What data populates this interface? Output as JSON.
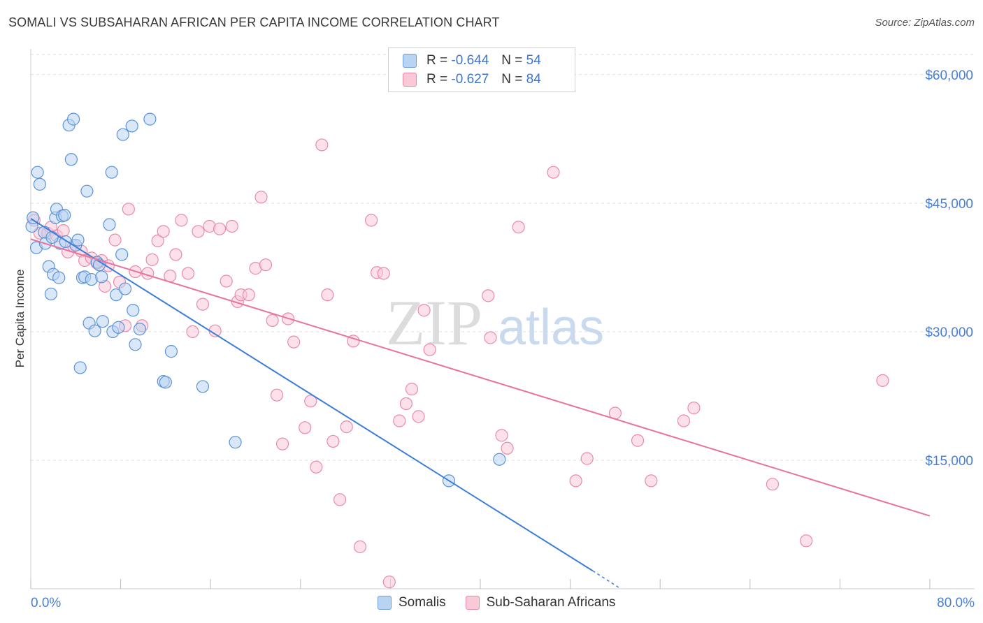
{
  "title": "SOMALI VS SUBSAHARAN AFRICAN PER CAPITA INCOME CORRELATION CHART",
  "source": "Source: ZipAtlas.com",
  "watermark": {
    "zip": "ZIP",
    "atlas": "atlas"
  },
  "legend": {
    "rows": [
      {
        "r_label": "R =",
        "r_value": "-0.644",
        "n_label": "N =",
        "n_value": "54"
      },
      {
        "r_label": "R =",
        "r_value": "-0.627",
        "n_label": "N =",
        "n_value": "84"
      }
    ]
  },
  "bottom_legend": [
    "Somalis",
    "Sub-Saharan Africans"
  ],
  "colors": {
    "blue": "#3b7dd8",
    "blue_fill": "#b9d3f3",
    "pink": "#e8739b",
    "pink_fill": "#f9c9d8",
    "axis_label": "#4a7fd0",
    "grid": "#dddddd"
  },
  "chart_data": {
    "type": "scatter",
    "ylabel": "Per Capita Income",
    "xlabel": "",
    "xlim": [
      0,
      80
    ],
    "ylim": [
      0,
      63000
    ],
    "x_tick_labels": [
      "0.0%",
      "80.0%"
    ],
    "y_ticks": [
      15000,
      30000,
      45000,
      60000
    ],
    "y_tick_labels": [
      "$15,000",
      "$30,000",
      "$45,000",
      "$60,000"
    ],
    "grid": "horizontal dashed",
    "series": [
      {
        "name": "Somalis",
        "color": "#3b7dd8",
        "trend": {
          "x0": 0,
          "y0": 43200,
          "x1": 50,
          "y1": 2100,
          "dash_to_x": 52.5,
          "dash_to_y": 0
        },
        "points": [
          [
            0.1,
            42300
          ],
          [
            0.2,
            43300
          ],
          [
            0.5,
            39800
          ],
          [
            0.6,
            48600
          ],
          [
            0.8,
            47200
          ],
          [
            1.2,
            41600
          ],
          [
            1.3,
            40300
          ],
          [
            1.6,
            37600
          ],
          [
            1.8,
            34400
          ],
          [
            2.0,
            36700
          ],
          [
            2.2,
            43300
          ],
          [
            2.3,
            44300
          ],
          [
            2.5,
            36300
          ],
          [
            2.8,
            43500
          ],
          [
            3.0,
            43600
          ],
          [
            3.4,
            54100
          ],
          [
            3.6,
            50100
          ],
          [
            3.8,
            54800
          ],
          [
            4.0,
            40100
          ],
          [
            4.2,
            40700
          ],
          [
            4.4,
            25800
          ],
          [
            4.6,
            36300
          ],
          [
            4.8,
            36400
          ],
          [
            5.0,
            46400
          ],
          [
            5.2,
            31000
          ],
          [
            5.4,
            36100
          ],
          [
            5.7,
            30100
          ],
          [
            5.9,
            38100
          ],
          [
            6.1,
            37800
          ],
          [
            6.3,
            36400
          ],
          [
            6.4,
            31200
          ],
          [
            7.0,
            42500
          ],
          [
            7.2,
            48600
          ],
          [
            7.3,
            30000
          ],
          [
            7.6,
            34300
          ],
          [
            7.8,
            30500
          ],
          [
            8.1,
            39000
          ],
          [
            8.2,
            53000
          ],
          [
            8.4,
            35000
          ],
          [
            9.0,
            54000
          ],
          [
            9.1,
            32500
          ],
          [
            9.3,
            28500
          ],
          [
            9.7,
            30300
          ],
          [
            10.6,
            54800
          ],
          [
            11.8,
            24200
          ],
          [
            12.0,
            24100
          ],
          [
            12.5,
            27700
          ],
          [
            15.3,
            23600
          ],
          [
            18.2,
            17100
          ],
          [
            37.2,
            12600
          ],
          [
            41.7,
            15100
          ],
          [
            2.6,
            40300
          ],
          [
            1.9,
            41000
          ],
          [
            3.1,
            40500
          ]
        ]
      },
      {
        "name": "Sub-Saharan Africans",
        "color": "#e8739b",
        "trend": {
          "x0": 0,
          "y0": 40800,
          "x1": 80,
          "y1": 8500
        },
        "points": [
          [
            0.3,
            43000
          ],
          [
            0.8,
            41500
          ],
          [
            1.5,
            41500
          ],
          [
            1.8,
            42200
          ],
          [
            2.3,
            41200
          ],
          [
            2.9,
            41800
          ],
          [
            3.3,
            39300
          ],
          [
            3.8,
            40000
          ],
          [
            4.5,
            39400
          ],
          [
            4.8,
            38300
          ],
          [
            5.4,
            38600
          ],
          [
            5.9,
            38000
          ],
          [
            6.3,
            38300
          ],
          [
            6.6,
            35300
          ],
          [
            6.9,
            37700
          ],
          [
            7.5,
            40700
          ],
          [
            7.9,
            35800
          ],
          [
            8.4,
            30700
          ],
          [
            8.7,
            44300
          ],
          [
            9.3,
            37000
          ],
          [
            9.9,
            30700
          ],
          [
            10.4,
            36800
          ],
          [
            10.8,
            38400
          ],
          [
            11.3,
            40600
          ],
          [
            11.8,
            41700
          ],
          [
            12.4,
            36500
          ],
          [
            12.9,
            39000
          ],
          [
            13.4,
            43000
          ],
          [
            14.0,
            36800
          ],
          [
            14.4,
            30000
          ],
          [
            14.9,
            41700
          ],
          [
            15.3,
            33200
          ],
          [
            15.9,
            42300
          ],
          [
            16.4,
            30100
          ],
          [
            16.8,
            42000
          ],
          [
            17.4,
            35900
          ],
          [
            17.9,
            42300
          ],
          [
            18.4,
            33500
          ],
          [
            18.7,
            34300
          ],
          [
            19.4,
            34300
          ],
          [
            20.0,
            37400
          ],
          [
            20.5,
            45700
          ],
          [
            20.9,
            37800
          ],
          [
            21.5,
            31300
          ],
          [
            21.9,
            22600
          ],
          [
            22.4,
            16900
          ],
          [
            22.9,
            31500
          ],
          [
            23.4,
            28800
          ],
          [
            24.4,
            18800
          ],
          [
            24.9,
            21900
          ],
          [
            25.4,
            14200
          ],
          [
            25.9,
            51800
          ],
          [
            26.4,
            34300
          ],
          [
            26.9,
            17200
          ],
          [
            27.5,
            10400
          ],
          [
            28.1,
            18900
          ],
          [
            28.7,
            28900
          ],
          [
            29.3,
            4900
          ],
          [
            30.3,
            43000
          ],
          [
            30.8,
            36900
          ],
          [
            31.4,
            36800
          ],
          [
            31.9,
            800
          ],
          [
            32.8,
            19600
          ],
          [
            33.4,
            21600
          ],
          [
            33.9,
            23300
          ],
          [
            34.5,
            20100
          ],
          [
            35.0,
            32500
          ],
          [
            35.5,
            27900
          ],
          [
            40.7,
            34200
          ],
          [
            40.9,
            29300
          ],
          [
            41.9,
            17900
          ],
          [
            42.4,
            16400
          ],
          [
            43.4,
            42200
          ],
          [
            46.5,
            48600
          ],
          [
            48.5,
            12600
          ],
          [
            49.5,
            15200
          ],
          [
            52.0,
            20500
          ],
          [
            54.0,
            17300
          ],
          [
            55.2,
            12600
          ],
          [
            58.1,
            19600
          ],
          [
            59.0,
            21100
          ],
          [
            66.0,
            12200
          ],
          [
            69.0,
            5600
          ],
          [
            75.8,
            24300
          ]
        ]
      }
    ]
  }
}
